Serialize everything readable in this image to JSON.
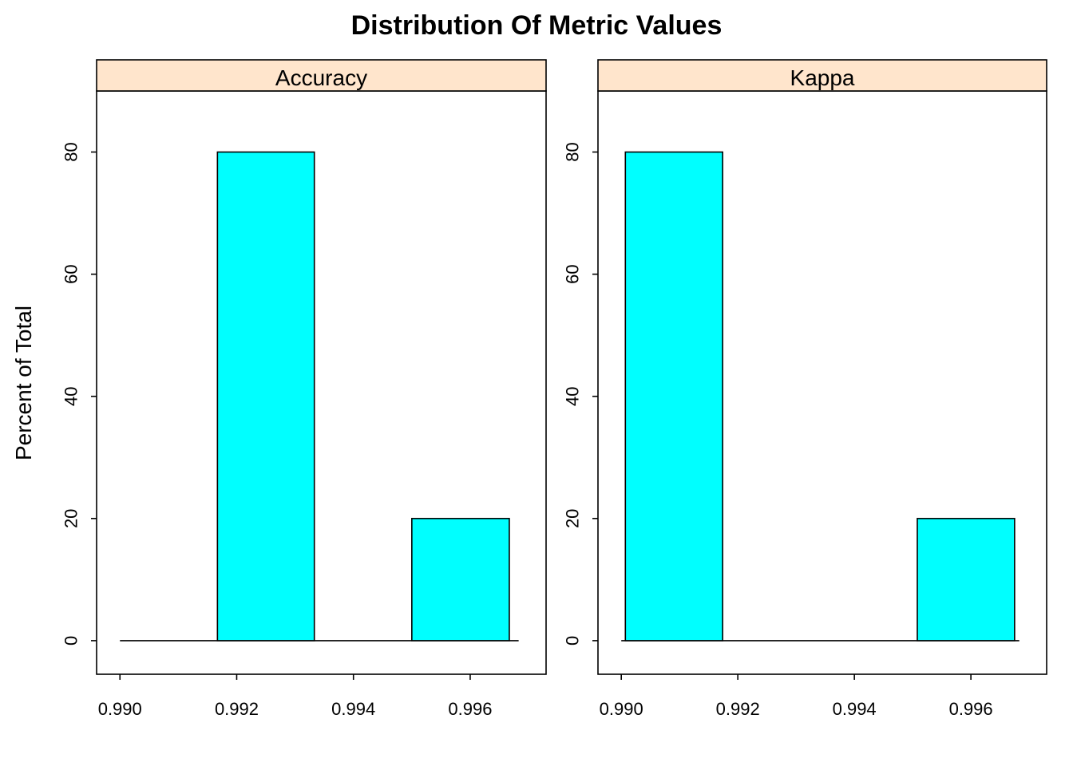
{
  "chart_data": {
    "type": "bar",
    "title": "Distribution Of Metric Values",
    "ylabel": "Percent of Total",
    "xlabel": "",
    "bar_color": "#00FFFF",
    "strip_color": "#FFE5CC",
    "xlim": [
      0.9896,
      0.9973
    ],
    "ylim": [
      -5.5,
      90
    ],
    "xticks": [
      0.99,
      0.992,
      0.994,
      0.996
    ],
    "xtick_labels": [
      "0.990",
      "0.992",
      "0.994",
      "0.996"
    ],
    "yticks": [
      0,
      20,
      40,
      60,
      80
    ],
    "ytick_labels": [
      "0",
      "20",
      "40",
      "60",
      "80"
    ],
    "panels": [
      {
        "name": "Accuracy",
        "baseline": [
          0.99,
          0.99683
        ],
        "bins": [
          {
            "x0": 0.99,
            "x1": 0.99167,
            "value": 0
          },
          {
            "x0": 0.99167,
            "x1": 0.99333,
            "value": 80
          },
          {
            "x0": 0.99333,
            "x1": 0.995,
            "value": 0
          },
          {
            "x0": 0.995,
            "x1": 0.99667,
            "value": 20
          }
        ]
      },
      {
        "name": "Kappa",
        "baseline": [
          0.99,
          0.99683
        ],
        "bins": [
          {
            "x0": 0.99007,
            "x1": 0.99174,
            "value": 80
          },
          {
            "x0": 0.99174,
            "x1": 0.99341,
            "value": 0
          },
          {
            "x0": 0.99341,
            "x1": 0.99508,
            "value": 0
          },
          {
            "x0": 0.99508,
            "x1": 0.99675,
            "value": 20
          }
        ]
      }
    ]
  }
}
